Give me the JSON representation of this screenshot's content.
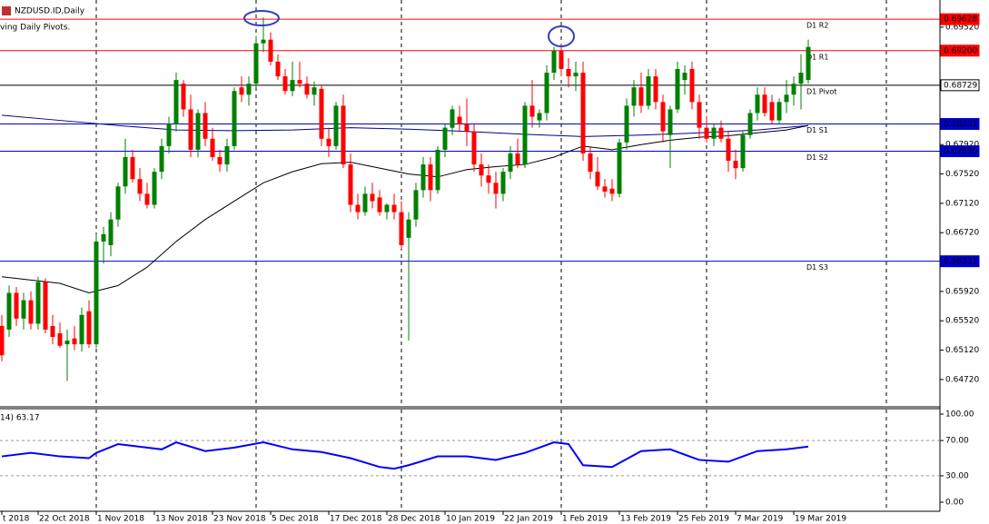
{
  "chart_data": {
    "type": "candlestick",
    "title": "NZDUSD.ID,Daily",
    "subtitle": "ving Daily Pivots.",
    "categories": [
      "t 2018",
      null,
      null,
      null,
      null,
      "22 Oct 2018",
      null,
      null,
      null,
      null,
      null,
      null,
      null,
      "1 Nov 2018",
      null,
      null,
      null,
      null,
      null,
      null,
      null,
      "13 Nov 2018",
      null,
      null,
      null,
      null,
      null,
      null,
      null,
      "23 Nov 2018",
      null,
      null,
      null,
      null,
      null,
      null,
      null,
      "5 Dec 2018",
      null,
      null,
      null,
      null,
      null,
      null,
      null,
      "17 Dec 2018",
      null,
      null,
      null,
      null,
      null,
      null,
      null,
      "28 Dec 2018",
      null,
      null,
      null,
      null,
      null,
      null,
      null,
      "10 Jan 2019",
      null,
      null,
      null,
      null,
      null,
      null,
      null,
      "22 Jan 2019",
      null,
      null,
      null,
      null,
      null,
      null,
      null,
      "1 Feb 2019",
      null,
      null,
      null,
      null,
      null,
      null,
      null,
      "13 Feb 2019",
      null,
      null,
      null,
      null,
      null,
      null,
      null,
      "25 Feb 2019",
      null,
      null,
      null,
      null,
      null,
      null,
      null,
      "7 Mar 2019",
      null,
      null,
      null,
      null,
      null,
      null,
      null,
      "19 Mar 2019",
      null,
      null
    ],
    "candles": [
      [
        0.6545,
        0.656,
        0.6497,
        0.6505
      ],
      [
        0.654,
        0.66,
        0.653,
        0.659
      ],
      [
        0.659,
        0.6598,
        0.6545,
        0.6555
      ],
      [
        0.6555,
        0.659,
        0.654,
        0.658
      ],
      [
        0.658,
        0.6592,
        0.654,
        0.6548
      ],
      [
        0.6548,
        0.6612,
        0.654,
        0.6605
      ],
      [
        0.6605,
        0.661,
        0.6535,
        0.654
      ],
      [
        0.6545,
        0.656,
        0.652,
        0.653
      ],
      [
        0.6535,
        0.655,
        0.6515,
        0.6518
      ],
      [
        0.652,
        0.654,
        0.647,
        0.6525
      ],
      [
        0.6528,
        0.6545,
        0.6512,
        0.652
      ],
      [
        0.652,
        0.657,
        0.651,
        0.656
      ],
      [
        0.6565,
        0.658,
        0.6515,
        0.652
      ],
      [
        0.652,
        0.667,
        0.6515,
        0.666
      ],
      [
        0.666,
        0.668,
        0.663,
        0.667
      ],
      [
        0.6655,
        0.67,
        0.664,
        0.669
      ],
      [
        0.669,
        0.674,
        0.668,
        0.6735
      ],
      [
        0.6735,
        0.68,
        0.6725,
        0.6775
      ],
      [
        0.6775,
        0.6785,
        0.674,
        0.6745
      ],
      [
        0.6745,
        0.676,
        0.6715,
        0.6725
      ],
      [
        0.6725,
        0.674,
        0.6705,
        0.671
      ],
      [
        0.671,
        0.676,
        0.6705,
        0.6755
      ],
      [
        0.6755,
        0.68,
        0.6745,
        0.679
      ],
      [
        0.679,
        0.683,
        0.678,
        0.682
      ],
      [
        0.682,
        0.689,
        0.681,
        0.688
      ],
      [
        0.6875,
        0.688,
        0.683,
        0.684
      ],
      [
        0.684,
        0.686,
        0.6775,
        0.6785
      ],
      [
        0.6785,
        0.684,
        0.6775,
        0.6835
      ],
      [
        0.6835,
        0.685,
        0.679,
        0.68
      ],
      [
        0.68,
        0.6815,
        0.677,
        0.6775
      ],
      [
        0.6775,
        0.6785,
        0.6755,
        0.6765
      ],
      [
        0.6765,
        0.68,
        0.6755,
        0.679
      ],
      [
        0.679,
        0.687,
        0.6785,
        0.6865
      ],
      [
        0.687,
        0.6885,
        0.685,
        0.686
      ],
      [
        0.686,
        0.6885,
        0.6845,
        0.6875
      ],
      [
        0.6875,
        0.694,
        0.687,
        0.693
      ],
      [
        0.693,
        0.6965,
        0.6918,
        0.6935
      ],
      [
        0.6935,
        0.6945,
        0.69,
        0.6905
      ],
      [
        0.6905,
        0.6915,
        0.688,
        0.6885
      ],
      [
        0.6885,
        0.6895,
        0.686,
        0.6865
      ],
      [
        0.6865,
        0.6905,
        0.6858,
        0.688
      ],
      [
        0.688,
        0.6905,
        0.687,
        0.6875
      ],
      [
        0.6875,
        0.6885,
        0.6855,
        0.686
      ],
      [
        0.686,
        0.6878,
        0.6845,
        0.687
      ],
      [
        0.6868,
        0.6872,
        0.679,
        0.68
      ],
      [
        0.68,
        0.6815,
        0.6775,
        0.679
      ],
      [
        0.679,
        0.685,
        0.6785,
        0.6845
      ],
      [
        0.6845,
        0.686,
        0.676,
        0.6765
      ],
      [
        0.6765,
        0.678,
        0.67,
        0.671
      ],
      [
        0.671,
        0.6725,
        0.669,
        0.67
      ],
      [
        0.67,
        0.6735,
        0.6695,
        0.6725
      ],
      [
        0.6725,
        0.674,
        0.6705,
        0.6715
      ],
      [
        0.672,
        0.673,
        0.6695,
        0.67
      ],
      [
        0.67,
        0.6712,
        0.669,
        0.671
      ],
      [
        0.671,
        0.6725,
        0.669,
        0.67
      ],
      [
        0.67,
        0.6715,
        0.665,
        0.6655
      ],
      [
        0.6665,
        0.67,
        0.6525,
        0.669
      ],
      [
        0.669,
        0.674,
        0.668,
        0.673
      ],
      [
        0.673,
        0.6775,
        0.672,
        0.6765
      ],
      [
        0.6765,
        0.6775,
        0.6715,
        0.673
      ],
      [
        0.673,
        0.679,
        0.6725,
        0.6785
      ],
      [
        0.6785,
        0.682,
        0.6775,
        0.6815
      ],
      [
        0.6815,
        0.6845,
        0.6805,
        0.684
      ],
      [
        0.683,
        0.6845,
        0.681,
        0.682
      ],
      [
        0.682,
        0.6855,
        0.679,
        0.681
      ],
      [
        0.681,
        0.682,
        0.6755,
        0.6765
      ],
      [
        0.6765,
        0.678,
        0.6735,
        0.675
      ],
      [
        0.675,
        0.6765,
        0.6725,
        0.674
      ],
      [
        0.674,
        0.6755,
        0.6705,
        0.6725
      ],
      [
        0.6725,
        0.676,
        0.6715,
        0.6755
      ],
      [
        0.6755,
        0.679,
        0.6745,
        0.678
      ],
      [
        0.678,
        0.68,
        0.676,
        0.6765
      ],
      [
        0.6765,
        0.685,
        0.676,
        0.6845
      ],
      [
        0.6845,
        0.688,
        0.6815,
        0.683
      ],
      [
        0.6825,
        0.684,
        0.6815,
        0.6835
      ],
      [
        0.6835,
        0.69,
        0.6825,
        0.689
      ],
      [
        0.689,
        0.6925,
        0.688,
        0.692
      ],
      [
        0.692,
        0.693,
        0.6885,
        0.6895
      ],
      [
        0.6895,
        0.691,
        0.687,
        0.6885
      ],
      [
        0.6885,
        0.6905,
        0.6865,
        0.689
      ],
      [
        0.689,
        0.6905,
        0.677,
        0.678
      ],
      [
        0.678,
        0.679,
        0.6745,
        0.6755
      ],
      [
        0.6755,
        0.6775,
        0.673,
        0.6735
      ],
      [
        0.6735,
        0.6745,
        0.672,
        0.6728
      ],
      [
        0.6732,
        0.6745,
        0.6715,
        0.6725
      ],
      [
        0.6725,
        0.68,
        0.672,
        0.6795
      ],
      [
        0.6795,
        0.6855,
        0.6785,
        0.6845
      ],
      [
        0.6845,
        0.688,
        0.683,
        0.687
      ],
      [
        0.687,
        0.689,
        0.6835,
        0.6845
      ],
      [
        0.6845,
        0.6895,
        0.684,
        0.6885
      ],
      [
        0.6885,
        0.6895,
        0.684,
        0.685
      ],
      [
        0.685,
        0.686,
        0.6795,
        0.681
      ],
      [
        0.6805,
        0.6845,
        0.676,
        0.684
      ],
      [
        0.684,
        0.6905,
        0.6835,
        0.6895
      ],
      [
        0.688,
        0.69,
        0.686,
        0.689
      ],
      [
        0.6895,
        0.6905,
        0.684,
        0.685
      ],
      [
        0.685,
        0.686,
        0.68,
        0.6815
      ],
      [
        0.6815,
        0.683,
        0.6795,
        0.68
      ],
      [
        0.68,
        0.682,
        0.679,
        0.6815
      ],
      [
        0.6815,
        0.6825,
        0.6795,
        0.68
      ],
      [
        0.68,
        0.681,
        0.6755,
        0.677
      ],
      [
        0.677,
        0.6785,
        0.6745,
        0.676
      ],
      [
        0.676,
        0.681,
        0.6755,
        0.6805
      ],
      [
        0.6805,
        0.684,
        0.68,
        0.6835
      ],
      [
        0.6835,
        0.687,
        0.6825,
        0.686
      ],
      [
        0.686,
        0.687,
        0.683,
        0.6835
      ],
      [
        0.685,
        0.686,
        0.682,
        0.6825
      ],
      [
        0.6825,
        0.6855,
        0.682,
        0.685
      ],
      [
        0.685,
        0.688,
        0.6835,
        0.686
      ],
      [
        0.686,
        0.6885,
        0.6845,
        0.6875
      ],
      [
        0.6875,
        0.6915,
        0.684,
        0.689
      ],
      [
        0.688,
        0.6935,
        0.6875,
        0.6925
      ]
    ],
    "up_color": "#008000",
    "down_color": "#ff0000",
    "ylim": [
      0.6436,
      0.6989
    ],
    "yticks": [
      {
        "value": 0.6952,
        "label": "0.69520"
      },
      {
        "value": 0.6792,
        "label": "0.67920"
      },
      {
        "value": 0.6752,
        "label": "0.67520"
      },
      {
        "value": 0.6712,
        "label": "0.67120"
      },
      {
        "value": 0.6672,
        "label": "0.66720"
      },
      {
        "value": 0.6632,
        "label": "0.66320"
      },
      {
        "value": 0.6592,
        "label": "0.65920"
      },
      {
        "value": 0.6552,
        "label": "0.65520"
      },
      {
        "value": 0.6512,
        "label": "0.65120"
      },
      {
        "value": 0.6472,
        "label": "0.64720"
      }
    ],
    "levels": [
      {
        "name": "D1 R2",
        "value": 0.69628,
        "label": "0.69628",
        "color": "#ff0000"
      },
      {
        "name": "D1 R1",
        "value": 0.692,
        "label": "0.69200",
        "color": "#ff0000"
      },
      {
        "name": "D1 Pivot",
        "value": 0.68729,
        "label": "0.68729",
        "color": "#000000"
      },
      {
        "name": "D1 S1",
        "value": 0.68201,
        "label": "0.68201",
        "color": "#0000cd"
      },
      {
        "name": "D1 S2",
        "value": 0.6783,
        "label": "0.67830",
        "color": "#0000cd"
      },
      {
        "name": "D1 S3",
        "value": 0.66331,
        "label": "0.66331",
        "color": "#0000cd"
      }
    ],
    "series": [
      {
        "color": "#00008b",
        "x": [
          0,
          8,
          16,
          24,
          32,
          40,
          48,
          56,
          64,
          72,
          80,
          88,
          96,
          104,
          111
        ],
        "values": [
          0.6832,
          0.6825,
          0.6818,
          0.6812,
          0.6811,
          0.6812,
          0.6815,
          0.6813,
          0.681,
          0.6806,
          0.6803,
          0.6805,
          0.6808,
          0.6812,
          0.6818
        ]
      },
      {
        "color": "#000000",
        "x": [
          0,
          8,
          12,
          16,
          20,
          24,
          28,
          32,
          36,
          40,
          44,
          48,
          52,
          56,
          60,
          64,
          68,
          72,
          76,
          80,
          84,
          88,
          92,
          96,
          100,
          104,
          108,
          111
        ],
        "values": [
          0.6612,
          0.6603,
          0.659,
          0.66,
          0.6625,
          0.666,
          0.669,
          0.6715,
          0.674,
          0.6755,
          0.6766,
          0.6768,
          0.676,
          0.6752,
          0.6748,
          0.6758,
          0.6762,
          0.6765,
          0.6775,
          0.679,
          0.6785,
          0.6792,
          0.6798,
          0.6802,
          0.6804,
          0.6808,
          0.6812,
          0.6818
        ]
      }
    ],
    "indicator": {
      "title": "14) 63.17",
      "color": "#0000ff",
      "ylim": [
        0,
        100
      ],
      "yticks": [
        {
          "value": 100,
          "label": "100.00"
        },
        {
          "value": 70,
          "label": "70.00"
        },
        {
          "value": 30,
          "label": "30.00"
        },
        {
          "value": 0,
          "label": "0.00"
        }
      ],
      "x": [
        0,
        4,
        8,
        12,
        13,
        16,
        20,
        22,
        24,
        28,
        32,
        36,
        40,
        44,
        48,
        52,
        54,
        56,
        60,
        64,
        68,
        72,
        76,
        78,
        80,
        84,
        88,
        92,
        96,
        100,
        104,
        108,
        111
      ],
      "values": [
        52,
        56,
        52,
        50,
        56,
        66,
        62,
        60,
        68,
        58,
        62,
        68,
        60,
        57,
        50,
        40,
        38,
        42,
        52,
        52,
        48,
        56,
        68,
        66,
        42,
        40,
        58,
        60,
        48,
        46,
        58,
        60,
        63.17
      ]
    }
  }
}
